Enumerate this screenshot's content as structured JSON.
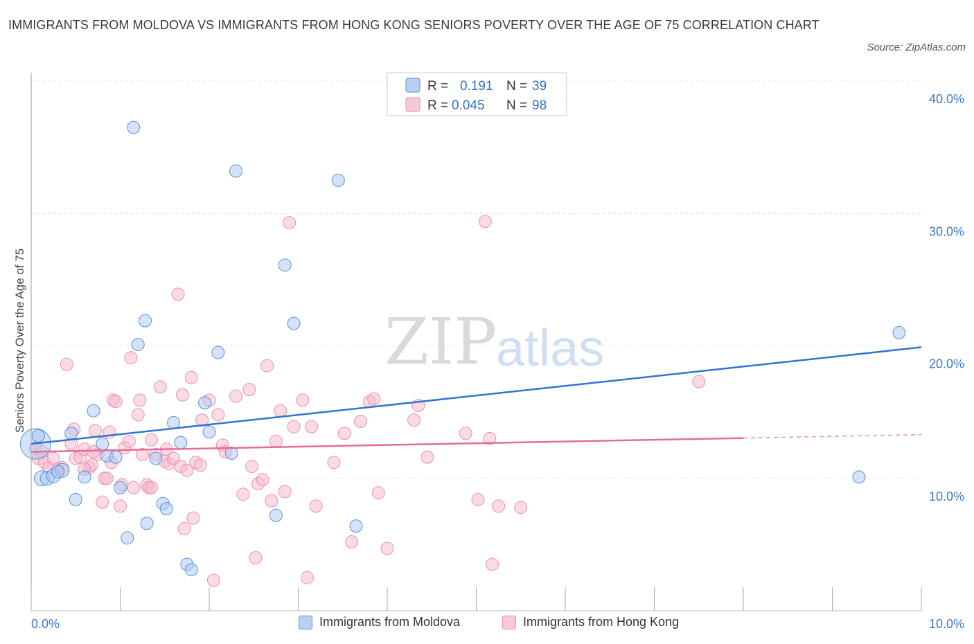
{
  "header": {
    "title": "IMMIGRANTS FROM MOLDOVA VS IMMIGRANTS FROM HONG KONG SENIORS POVERTY OVER THE AGE OF 75 CORRELATION CHART",
    "source": "Source: ZipAtlas.com"
  },
  "watermark": {
    "zip": "ZIP",
    "atlas": "atlas"
  },
  "legend": {
    "series": [
      {
        "r_label": "R = ",
        "r_value": "0.191",
        "n_label": "N = ",
        "n_value": "39"
      },
      {
        "r_label": "R = ",
        "r_value": "0.045",
        "n_label": "N = ",
        "n_value": "98"
      }
    ]
  },
  "bottom_legend": {
    "items": [
      "Immigrants from Moldova",
      "Immigrants from Hong Kong"
    ]
  },
  "colors": {
    "blue": "#3a78d4",
    "blue_fill": "#aac8f0",
    "blue_stroke": "#5a90d8",
    "pink": "#e56a97",
    "pink_fill": "#f5b8cb",
    "pink_stroke": "#e890ad",
    "axis_text": "#3a78c9",
    "grid": "#dddddd"
  },
  "chart_data": {
    "type": "scatter",
    "title": "IMMIGRANTS FROM MOLDOVA VS IMMIGRANTS FROM HONG KONG SENIORS POVERTY OVER THE AGE OF 75 CORRELATION CHART",
    "xlabel": "",
    "ylabel": "Seniors Poverty Over the Age of 75",
    "xlim": [
      0,
      10
    ],
    "ylim": [
      0,
      40
    ],
    "x_tick_labels": [
      "0.0%",
      "10.0%"
    ],
    "y_tick_labels": [
      "10.0%",
      "20.0%",
      "30.0%",
      "40.0%"
    ],
    "y_ticks": [
      10,
      20,
      30,
      40
    ],
    "grid": true,
    "legend_position": "top-center",
    "series": [
      {
        "name": "Immigrants from Moldova",
        "color": "#3a78d4",
        "trend": {
          "x": [
            0,
            10
          ],
          "y": [
            12.6,
            19.9
          ],
          "solid_until": 10
        },
        "points": [
          [
            0.05,
            12.6
          ],
          [
            0.12,
            10.0
          ],
          [
            0.18,
            10.0
          ],
          [
            0.25,
            10.2
          ],
          [
            0.35,
            10.6
          ],
          [
            0.45,
            13.4
          ],
          [
            0.5,
            8.4
          ],
          [
            0.6,
            10.1
          ],
          [
            0.7,
            15.1
          ],
          [
            0.8,
            12.6
          ],
          [
            0.85,
            11.7
          ],
          [
            0.95,
            11.6
          ],
          [
            1.0,
            9.3
          ],
          [
            1.08,
            5.5
          ],
          [
            1.15,
            36.5
          ],
          [
            1.2,
            20.1
          ],
          [
            1.28,
            21.9
          ],
          [
            1.3,
            6.6
          ],
          [
            1.4,
            11.5
          ],
          [
            1.48,
            8.1
          ],
          [
            1.52,
            7.7
          ],
          [
            1.6,
            14.2
          ],
          [
            1.68,
            12.7
          ],
          [
            1.75,
            3.5
          ],
          [
            1.8,
            3.1
          ],
          [
            1.95,
            15.7
          ],
          [
            2.0,
            13.5
          ],
          [
            2.1,
            19.5
          ],
          [
            2.25,
            11.9
          ],
          [
            2.3,
            33.2
          ],
          [
            2.75,
            7.2
          ],
          [
            2.85,
            26.1
          ],
          [
            2.95,
            21.7
          ],
          [
            3.45,
            32.5
          ],
          [
            3.65,
            6.4
          ],
          [
            9.3,
            10.1
          ],
          [
            9.75,
            21.0
          ],
          [
            0.08,
            13.2
          ],
          [
            0.3,
            10.5
          ]
        ],
        "point_sizes": [
          22,
          11,
          10,
          10,
          10,
          9,
          9,
          9,
          9,
          9,
          9,
          9,
          9,
          9,
          9,
          9,
          9,
          9,
          9,
          9,
          9,
          9,
          9,
          9,
          9,
          9,
          9,
          9,
          9,
          9,
          9,
          9,
          9,
          9,
          9,
          9,
          9,
          9,
          9
        ]
      },
      {
        "name": "Immigrants from Hong Kong",
        "color": "#e56a97",
        "trend": {
          "x": [
            0,
            10
          ],
          "y": [
            12.0,
            13.3
          ],
          "solid_until": 8.0
        },
        "points": [
          [
            0.05,
            12.3
          ],
          [
            0.08,
            11.5
          ],
          [
            0.12,
            12.0
          ],
          [
            0.15,
            11.2
          ],
          [
            0.2,
            10.8
          ],
          [
            0.25,
            11.5
          ],
          [
            0.3,
            10.7
          ],
          [
            0.35,
            10.8
          ],
          [
            0.4,
            18.6
          ],
          [
            0.45,
            12.6
          ],
          [
            0.48,
            13.7
          ],
          [
            0.5,
            11.5
          ],
          [
            0.55,
            11.6
          ],
          [
            0.6,
            12.2
          ],
          [
            0.65,
            10.8
          ],
          [
            0.68,
            11.0
          ],
          [
            0.72,
            13.6
          ],
          [
            0.75,
            11.8
          ],
          [
            0.8,
            8.2
          ],
          [
            0.82,
            10.0
          ],
          [
            0.85,
            10.0
          ],
          [
            0.88,
            13.5
          ],
          [
            0.9,
            11.2
          ],
          [
            0.92,
            15.9
          ],
          [
            0.95,
            15.8
          ],
          [
            1.0,
            7.9
          ],
          [
            1.02,
            9.5
          ],
          [
            1.05,
            12.3
          ],
          [
            1.1,
            12.8
          ],
          [
            1.12,
            19.1
          ],
          [
            1.15,
            9.3
          ],
          [
            1.2,
            14.8
          ],
          [
            1.22,
            15.9
          ],
          [
            1.25,
            11.8
          ],
          [
            1.3,
            9.5
          ],
          [
            1.32,
            9.3
          ],
          [
            1.35,
            12.9
          ],
          [
            1.4,
            11.8
          ],
          [
            1.45,
            16.9
          ],
          [
            1.5,
            11.3
          ],
          [
            1.52,
            12.2
          ],
          [
            1.55,
            11.1
          ],
          [
            1.6,
            11.5
          ],
          [
            1.65,
            23.9
          ],
          [
            1.68,
            10.9
          ],
          [
            1.7,
            16.3
          ],
          [
            1.72,
            6.2
          ],
          [
            1.75,
            10.6
          ],
          [
            1.8,
            17.6
          ],
          [
            1.82,
            7.0
          ],
          [
            1.85,
            11.2
          ],
          [
            1.9,
            11.0
          ],
          [
            1.92,
            14.4
          ],
          [
            2.0,
            15.9
          ],
          [
            2.05,
            2.3
          ],
          [
            2.1,
            14.8
          ],
          [
            2.15,
            12.5
          ],
          [
            2.18,
            12.0
          ],
          [
            2.3,
            16.2
          ],
          [
            2.38,
            8.8
          ],
          [
            2.45,
            16.7
          ],
          [
            2.48,
            10.9
          ],
          [
            2.52,
            4.0
          ],
          [
            2.55,
            9.6
          ],
          [
            2.6,
            9.9
          ],
          [
            2.65,
            18.5
          ],
          [
            2.7,
            8.3
          ],
          [
            2.75,
            12.8
          ],
          [
            2.8,
            15.1
          ],
          [
            2.85,
            9.0
          ],
          [
            2.9,
            29.3
          ],
          [
            2.95,
            13.9
          ],
          [
            3.1,
            2.5
          ],
          [
            3.15,
            13.9
          ],
          [
            3.2,
            7.9
          ],
          [
            3.05,
            15.9
          ],
          [
            3.4,
            11.2
          ],
          [
            3.52,
            13.4
          ],
          [
            3.6,
            5.2
          ],
          [
            3.7,
            14.3
          ],
          [
            3.8,
            15.8
          ],
          [
            3.85,
            16.0
          ],
          [
            3.9,
            8.9
          ],
          [
            4.0,
            4.7
          ],
          [
            4.3,
            14.4
          ],
          [
            4.35,
            15.5
          ],
          [
            4.45,
            11.6
          ],
          [
            4.88,
            13.4
          ],
          [
            5.02,
            8.4
          ],
          [
            5.1,
            29.4
          ],
          [
            5.15,
            13.0
          ],
          [
            5.18,
            3.5
          ],
          [
            5.25,
            7.9
          ],
          [
            5.5,
            7.8
          ],
          [
            7.5,
            17.3
          ],
          [
            0.6,
            10.7
          ],
          [
            0.7,
            12.0
          ],
          [
            1.35,
            9.3
          ]
        ]
      }
    ]
  }
}
